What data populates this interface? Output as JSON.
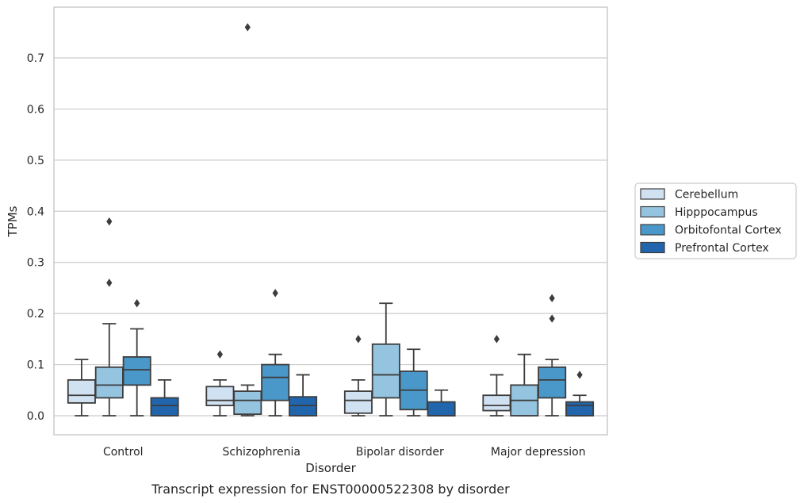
{
  "chart_data": {
    "type": "box",
    "xlabel": "Disorder",
    "ylabel": "TPMs",
    "caption": "Transcript expression for ENST00000522308 by disorder",
    "ylim": [
      -0.037,
      0.8
    ],
    "yticks": [
      0.0,
      0.1,
      0.2,
      0.3,
      0.4,
      0.5,
      0.6,
      0.7
    ],
    "ytick_labels": [
      "0.0",
      "0.1",
      "0.2",
      "0.3",
      "0.4",
      "0.5",
      "0.6",
      "0.7"
    ],
    "grid": "horizontal",
    "legend_position": "outside-right",
    "categories": [
      "Control",
      "Schizophrenia",
      "Bipolar disorder",
      "Major depression"
    ],
    "series": [
      {
        "name": "Cerebellum",
        "color": "#d0e1f2",
        "boxes": [
          {
            "whislo": 0.0,
            "q1": 0.025,
            "med": 0.04,
            "q3": 0.07,
            "whishi": 0.11,
            "fliers": []
          },
          {
            "whislo": 0.0,
            "q1": 0.02,
            "med": 0.03,
            "q3": 0.057,
            "whishi": 0.07,
            "fliers": [
              0.12
            ]
          },
          {
            "whislo": 0.0,
            "q1": 0.005,
            "med": 0.03,
            "q3": 0.048,
            "whishi": 0.07,
            "fliers": [
              0.15
            ]
          },
          {
            "whislo": 0.0,
            "q1": 0.01,
            "med": 0.02,
            "q3": 0.04,
            "whishi": 0.08,
            "fliers": [
              0.15
            ]
          }
        ]
      },
      {
        "name": "Hipppocampus",
        "color": "#94c4df",
        "boxes": [
          {
            "whislo": 0.0,
            "q1": 0.035,
            "med": 0.06,
            "q3": 0.095,
            "whishi": 0.18,
            "fliers": [
              0.26,
              0.38
            ]
          },
          {
            "whislo": 0.0,
            "q1": 0.003,
            "med": 0.03,
            "q3": 0.048,
            "whishi": 0.06,
            "fliers": [
              0.76
            ]
          },
          {
            "whislo": 0.0,
            "q1": 0.035,
            "med": 0.08,
            "q3": 0.14,
            "whishi": 0.22,
            "fliers": []
          },
          {
            "whislo": 0.0,
            "q1": 0.0,
            "med": 0.03,
            "q3": 0.06,
            "whishi": 0.12,
            "fliers": []
          }
        ]
      },
      {
        "name": "Orbitofontal Cortex",
        "color": "#4a98c9",
        "boxes": [
          {
            "whislo": 0.0,
            "q1": 0.06,
            "med": 0.09,
            "q3": 0.115,
            "whishi": 0.17,
            "fliers": [
              0.22
            ]
          },
          {
            "whislo": 0.0,
            "q1": 0.03,
            "med": 0.075,
            "q3": 0.1,
            "whishi": 0.12,
            "fliers": [
              0.24
            ]
          },
          {
            "whislo": 0.0,
            "q1": 0.012,
            "med": 0.05,
            "q3": 0.087,
            "whishi": 0.13,
            "fliers": []
          },
          {
            "whislo": 0.0,
            "q1": 0.035,
            "med": 0.07,
            "q3": 0.095,
            "whishi": 0.11,
            "fliers": [
              0.19,
              0.23
            ]
          }
        ]
      },
      {
        "name": "Prefrontal Cortex",
        "color": "#2166ac",
        "boxes": [
          {
            "whislo": 0.0,
            "q1": 0.0,
            "med": 0.02,
            "q3": 0.035,
            "whishi": 0.07,
            "fliers": []
          },
          {
            "whislo": 0.0,
            "q1": 0.0,
            "med": 0.02,
            "q3": 0.037,
            "whishi": 0.08,
            "fliers": []
          },
          {
            "whislo": 0.0,
            "q1": 0.0,
            "med": 0.0,
            "q3": 0.027,
            "whishi": 0.05,
            "fliers": []
          },
          {
            "whislo": 0.0,
            "q1": 0.0,
            "med": 0.02,
            "q3": 0.027,
            "whishi": 0.04,
            "fliers": [
              0.08
            ]
          }
        ]
      }
    ]
  }
}
